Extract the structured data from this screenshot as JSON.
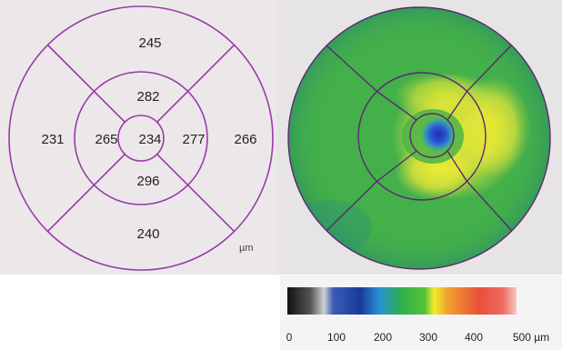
{
  "thickness_map": {
    "unit": "µm",
    "sectors": {
      "center": "234",
      "inner_superior": "282",
      "inner_inferior": "296",
      "inner_left": "265",
      "inner_right": "277",
      "outer_superior": "245",
      "outer_inferior": "240",
      "outer_left": "231",
      "outer_right": "266"
    }
  },
  "color_map": {
    "ring_color": "#5a2a6e",
    "background_color": "#3fae43"
  },
  "color_scale": {
    "ticks": [
      "0",
      "100",
      "200",
      "300",
      "400",
      "500 µm"
    ],
    "stops": [
      {
        "value": 0,
        "color": "#111111"
      },
      {
        "value": 50,
        "color": "#555555"
      },
      {
        "value": 80,
        "color": "#cfd0d4"
      },
      {
        "value": 100,
        "color": "#3a5cb5"
      },
      {
        "value": 160,
        "color": "#1b3a9a"
      },
      {
        "value": 200,
        "color": "#2a8fd6"
      },
      {
        "value": 250,
        "color": "#2eb04a"
      },
      {
        "value": 300,
        "color": "#58c13a"
      },
      {
        "value": 320,
        "color": "#f2ec2a"
      },
      {
        "value": 350,
        "color": "#f0a030"
      },
      {
        "value": 420,
        "color": "#e8503a"
      },
      {
        "value": 470,
        "color": "#f06a60"
      },
      {
        "value": 500,
        "color": "#f5c8c4"
      }
    ]
  }
}
